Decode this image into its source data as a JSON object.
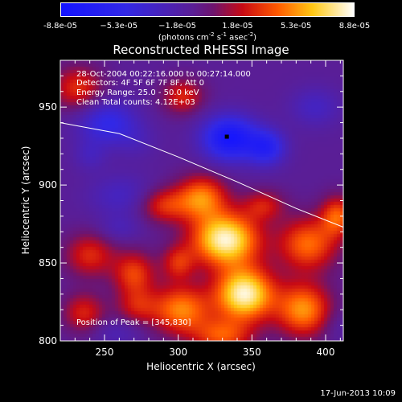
{
  "colorbar": {
    "tick_labels": [
      "-8.8e-05",
      "−5.3e-05",
      "−1.8e-05",
      "1.8e-05",
      "5.3e-05",
      "8.8e-05"
    ],
    "tick_values": [
      -8.8e-05,
      -5.3e-05,
      -1.8e-05,
      1.8e-05,
      5.3e-05,
      8.8e-05
    ],
    "unit_text": "(photons cm",
    "unit_exp1": "-2",
    "unit_mid": " s",
    "unit_exp2": "-1",
    "unit_mid2": " asec",
    "unit_exp3": "-2",
    "unit_close": ")"
  },
  "info": {
    "time_range": "28-Oct-2004 00:22:16.000 to 00:27:14.000",
    "detectors": "Detectors: 4F 5F 6F 7F 8F, Att 0",
    "energy": "Energy Range: 25.0 - 50.0 keV",
    "method": "Clean     Total counts: 4.12E+03",
    "peak": "Position of Peak = [345,830]"
  },
  "footer": "17-Jun-2013 10:09",
  "chart_data": {
    "type": "heatmap",
    "title": "Reconstructed RHESSI Image",
    "xlabel": "Heliocentric X (arcsec)",
    "ylabel": "Heliocentric Y (arcsec)",
    "xlim": [
      220,
      412
    ],
    "ylim": [
      800,
      980
    ],
    "x_ticks": [
      250,
      300,
      350,
      400
    ],
    "y_ticks": [
      800,
      850,
      900,
      950
    ],
    "colorbar_range": [
      -8.8e-05,
      8.8e-05
    ],
    "colors": {
      "negative": "#1f2bff",
      "mid": "#5a1a8c",
      "positive": "#ffffff"
    },
    "limb_curve": [
      [
        220,
        940
      ],
      [
        260,
        933
      ],
      [
        300,
        918
      ],
      [
        340,
        902
      ],
      [
        380,
        885
      ],
      [
        412,
        873
      ]
    ],
    "sources": [
      {
        "x": 232,
        "y": 962,
        "value": 3.6e-05,
        "sx": 12,
        "sy": 10
      },
      {
        "x": 252,
        "y": 940,
        "value": -4.5e-05,
        "sx": 14,
        "sy": 10
      },
      {
        "x": 240,
        "y": 919,
        "value": -2e-05,
        "sx": 8,
        "sy": 7
      },
      {
        "x": 272,
        "y": 928,
        "value": -1.5e-05,
        "sx": 10,
        "sy": 8
      },
      {
        "x": 335,
        "y": 930,
        "value": -7.8e-05,
        "sx": 13,
        "sy": 10
      },
      {
        "x": 360,
        "y": 924,
        "value": -5.5e-05,
        "sx": 9,
        "sy": 8
      },
      {
        "x": 303,
        "y": 957,
        "value": 3.3e-05,
        "sx": 10,
        "sy": 8
      },
      {
        "x": 393,
        "y": 950,
        "value": -2.5e-05,
        "sx": 12,
        "sy": 9
      },
      {
        "x": 262,
        "y": 893,
        "value": -2.5e-05,
        "sx": 16,
        "sy": 10
      },
      {
        "x": 290,
        "y": 887,
        "value": 3.6e-05,
        "sx": 12,
        "sy": 8
      },
      {
        "x": 316,
        "y": 892,
        "value": 5.3e-05,
        "sx": 12,
        "sy": 10
      },
      {
        "x": 358,
        "y": 887,
        "value": 2.8e-05,
        "sx": 10,
        "sy": 7
      },
      {
        "x": 332,
        "y": 865,
        "value": 8.8e-05,
        "sx": 16,
        "sy": 12
      },
      {
        "x": 388,
        "y": 862,
        "value": 5e-05,
        "sx": 14,
        "sy": 12
      },
      {
        "x": 408,
        "y": 880,
        "value": 4.5e-05,
        "sx": 8,
        "sy": 9
      },
      {
        "x": 240,
        "y": 855,
        "value": 3.4e-05,
        "sx": 12,
        "sy": 10
      },
      {
        "x": 270,
        "y": 843,
        "value": 4e-05,
        "sx": 10,
        "sy": 10
      },
      {
        "x": 300,
        "y": 850,
        "value": 3.2e-05,
        "sx": 8,
        "sy": 8
      },
      {
        "x": 260,
        "y": 872,
        "value": -1.8e-05,
        "sx": 10,
        "sy": 6
      },
      {
        "x": 345,
        "y": 830,
        "value": 8.8e-05,
        "sx": 14,
        "sy": 12
      },
      {
        "x": 302,
        "y": 820,
        "value": 5.5e-05,
        "sx": 14,
        "sy": 11
      },
      {
        "x": 385,
        "y": 820,
        "value": 5.8e-05,
        "sx": 13,
        "sy": 12
      },
      {
        "x": 236,
        "y": 818,
        "value": 3.2e-05,
        "sx": 10,
        "sy": 9
      },
      {
        "x": 272,
        "y": 822,
        "value": 2.5e-05,
        "sx": 10,
        "sy": 8
      },
      {
        "x": 330,
        "y": 803,
        "value": 4.2e-05,
        "sx": 14,
        "sy": 8
      },
      {
        "x": 258,
        "y": 805,
        "value": -1.8e-05,
        "sx": 12,
        "sy": 6
      },
      {
        "x": 408,
        "y": 810,
        "value": -1.2e-05,
        "sx": 8,
        "sy": 8
      }
    ],
    "peak_position": [
      345,
      830
    ],
    "marker_position": [
      333,
      931
    ]
  }
}
